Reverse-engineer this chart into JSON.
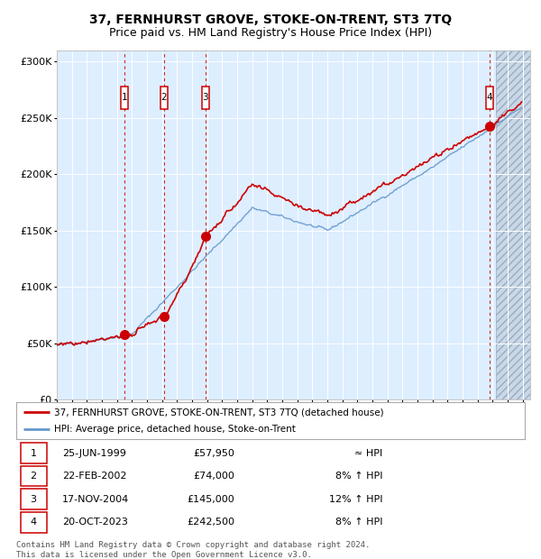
{
  "title": "37, FERNHURST GROVE, STOKE-ON-TRENT, ST3 7TQ",
  "subtitle": "Price paid vs. HM Land Registry's House Price Index (HPI)",
  "ylabel_ticks": [
    "£0",
    "£50K",
    "£100K",
    "£150K",
    "£200K",
    "£250K",
    "£300K"
  ],
  "ytick_values": [
    0,
    50000,
    100000,
    150000,
    200000,
    250000,
    300000
  ],
  "ylim": [
    0,
    310000
  ],
  "xlim_start": 1995.0,
  "xlim_end": 2026.5,
  "sale_dates": [
    1999.484,
    2002.143,
    2004.896,
    2023.803
  ],
  "sale_prices": [
    57950,
    74000,
    145000,
    242500
  ],
  "sale_labels": [
    "1",
    "2",
    "3",
    "4"
  ],
  "hpi_line_color": "#6699cc",
  "price_line_color": "#cc0000",
  "dashed_line_color": "#cc0000",
  "background_color": "#ddeeff",
  "grid_color": "#ffffff",
  "legend_label_price": "37, FERNHURST GROVE, STOKE-ON-TRENT, ST3 7TQ (detached house)",
  "legend_label_hpi": "HPI: Average price, detached house, Stoke-on-Trent",
  "table_entries": [
    {
      "num": "1",
      "date": "25-JUN-1999",
      "price": "£57,950",
      "vs_hpi": "≈ HPI"
    },
    {
      "num": "2",
      "date": "22-FEB-2002",
      "price": "£74,000",
      "vs_hpi": "8% ↑ HPI"
    },
    {
      "num": "3",
      "date": "17-NOV-2004",
      "price": "£145,000",
      "vs_hpi": "12% ↑ HPI"
    },
    {
      "num": "4",
      "date": "20-OCT-2023",
      "price": "£242,500",
      "vs_hpi": "8% ↑ HPI"
    }
  ],
  "footer": "Contains HM Land Registry data © Crown copyright and database right 2024.\nThis data is licensed under the Open Government Licence v3.0.",
  "title_fontsize": 10,
  "subtitle_fontsize": 9
}
